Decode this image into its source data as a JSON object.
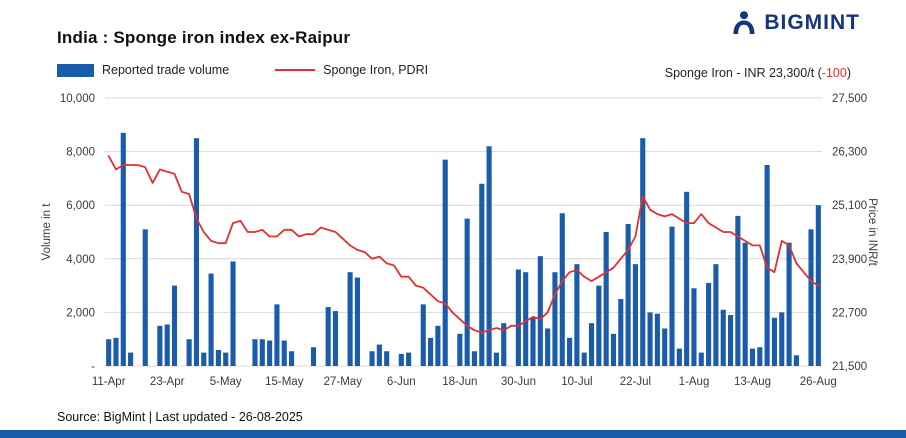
{
  "header": {
    "title": "India : Sponge iron index ex-Raipur",
    "logo_text": "BIGMINT"
  },
  "legend": {
    "volume_label": "Reported trade volume",
    "price_label": "Sponge Iron, PDRI",
    "current_price_prefix": "Sponge Iron - INR 23,300/t (",
    "current_price_change": "-100",
    "current_price_suffix": ")"
  },
  "axes": {
    "left_title": "Volume in t",
    "right_title": "Price in INR/t"
  },
  "footer": {
    "source": "Source: BigMint | Last updated - 26-08-2025"
  },
  "colors": {
    "bar": "#1b5caa",
    "line": "#e03131",
    "navy": "#16357c",
    "grid": "#d9d9d9",
    "tick_text": "#3a3a3a",
    "negative": "#e03131"
  },
  "chart_data": {
    "type": "bar",
    "title": "India : Sponge iron index ex-Raipur",
    "xlabel": "",
    "ylabel_left": "Volume in t",
    "ylabel_right": "Price in INR/t",
    "grid": true,
    "legend_position": "top-left",
    "x_tick_labels": [
      "11-Apr",
      "23-Apr",
      "5-May",
      "15-May",
      "27-May",
      "6-Jun",
      "18-Jun",
      "30-Jun",
      "10-Jul",
      "22-Jul",
      "1-Aug",
      "13-Aug",
      "26-Aug"
    ],
    "x_tick_indices": [
      0,
      8,
      16,
      24,
      32,
      40,
      48,
      56,
      64,
      72,
      80,
      88,
      97
    ],
    "left_axis": {
      "range": [
        0,
        10000
      ],
      "ticks": [
        0,
        2000,
        4000,
        6000,
        8000,
        10000
      ],
      "labels": [
        "-",
        "2,000",
        "4,000",
        "6,000",
        "8,000",
        "10,000"
      ]
    },
    "right_axis": {
      "range": [
        21500,
        27500
      ],
      "ticks": [
        21500,
        22700,
        23900,
        25100,
        26300,
        27500
      ],
      "labels": [
        "21,500",
        "22,700",
        "23,900",
        "25,100",
        "26,300",
        "27,500"
      ]
    },
    "series": [
      {
        "name": "Reported trade volume",
        "type": "bar",
        "axis": "left",
        "values": [
          1000,
          1050,
          8700,
          500,
          0,
          5100,
          0,
          1500,
          1550,
          3000,
          0,
          1000,
          8500,
          500,
          3450,
          600,
          500,
          3900,
          0,
          0,
          1000,
          1000,
          950,
          2300,
          950,
          550,
          0,
          0,
          700,
          0,
          2200,
          2050,
          0,
          3500,
          3300,
          0,
          550,
          800,
          550,
          0,
          450,
          500,
          0,
          2300,
          1050,
          1500,
          7700,
          0,
          1200,
          5500,
          550,
          6800,
          8200,
          500,
          1600,
          0,
          3600,
          3500,
          1800,
          4100,
          1400,
          3500,
          5700,
          1050,
          3800,
          500,
          1600,
          3000,
          5000,
          1200,
          2500,
          5300,
          3800,
          8500,
          2000,
          1950,
          1400,
          5200,
          650,
          6500,
          2900,
          500,
          3100,
          3800,
          2100,
          1900,
          5600,
          4600,
          650,
          700,
          7500,
          1800,
          2000,
          4600,
          400,
          0,
          5100,
          6000
        ]
      },
      {
        "name": "Sponge Iron, PDRI",
        "type": "line",
        "axis": "right",
        "values": [
          26200,
          25900,
          26000,
          26000,
          26000,
          25950,
          25600,
          25900,
          25850,
          25800,
          25400,
          25350,
          24800,
          24500,
          24300,
          24250,
          24250,
          24700,
          24750,
          24500,
          24500,
          24550,
          24400,
          24400,
          24550,
          24550,
          24400,
          24450,
          24450,
          24600,
          24550,
          24500,
          24350,
          24200,
          24100,
          24050,
          23900,
          23950,
          23800,
          23750,
          23500,
          23500,
          23300,
          23250,
          23100,
          22950,
          22900,
          22700,
          22550,
          22400,
          22300,
          22250,
          22300,
          22350,
          22300,
          22400,
          22400,
          22500,
          22600,
          22550,
          22700,
          23100,
          23400,
          23600,
          23650,
          23500,
          23400,
          23500,
          23600,
          23700,
          23900,
          24100,
          24400,
          25300,
          25000,
          24900,
          24850,
          24900,
          24800,
          24700,
          24700,
          24900,
          24700,
          24600,
          24500,
          24500,
          24400,
          24300,
          24200,
          24200,
          23700,
          23600,
          24300,
          24200,
          23800,
          23600,
          23400,
          23300
        ]
      }
    ]
  }
}
